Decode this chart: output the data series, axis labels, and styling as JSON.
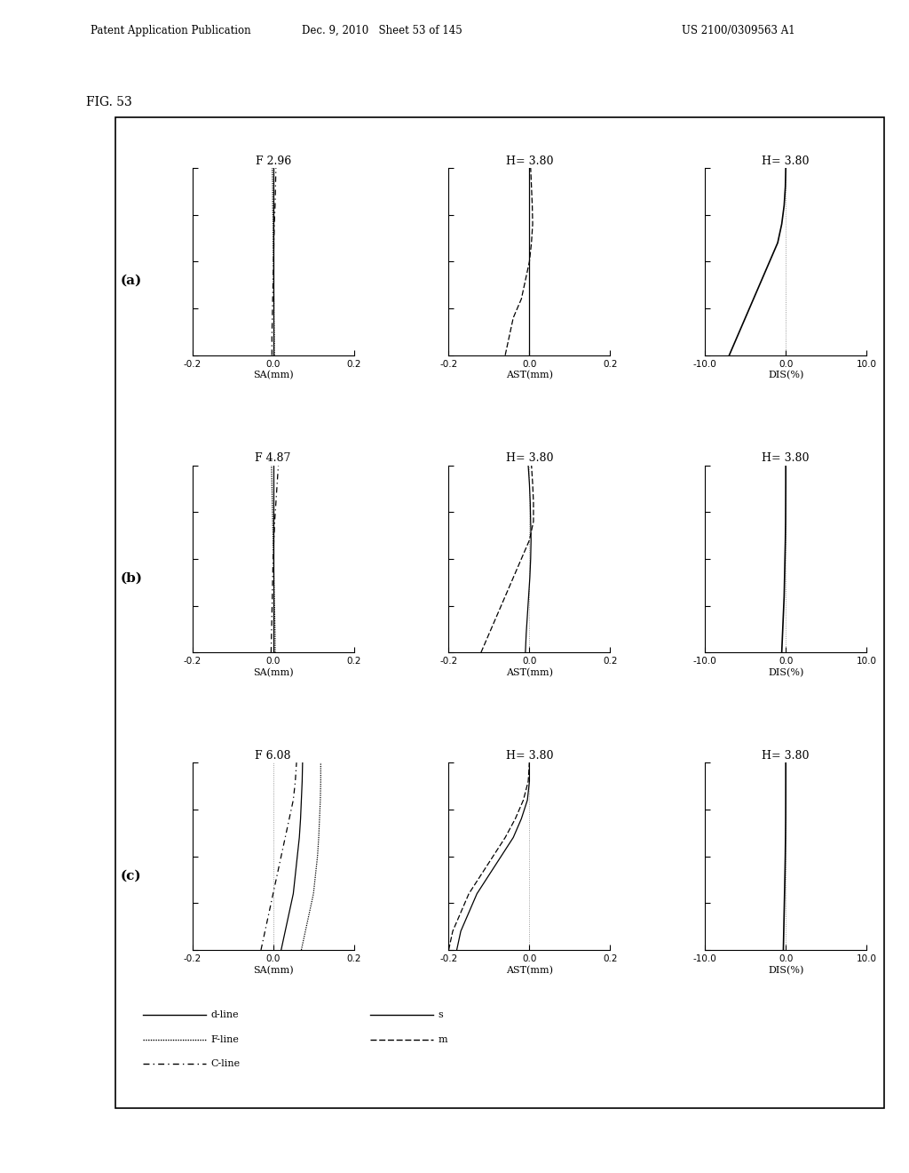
{
  "fig_label": "FIG. 53",
  "header_left": "Patent Application Publication",
  "header_mid": "Dec. 9, 2010   Sheet 53 of 145",
  "header_right": "US 2100/0309563 A1",
  "rows": [
    "(a)",
    "(b)",
    "(c)"
  ],
  "row_titles_sa": [
    "F 2.96",
    "F 4.87",
    "F 6.08"
  ],
  "row_titles_ast": [
    "H= 3.80",
    "H= 3.80",
    "H= 3.80"
  ],
  "row_titles_dis": [
    "H= 3.80",
    "H= 3.80",
    "H= 3.80"
  ],
  "sa_xlim": [
    -0.2,
    0.2
  ],
  "ast_xlim": [
    -0.2,
    0.2
  ],
  "dis_xlim": [
    -10.0,
    10.0
  ],
  "ylim": [
    0.0,
    1.0
  ],
  "sa_xlabel": "SA(mm)",
  "ast_xlabel": "AST(mm)",
  "dis_xlabel": "DIS(%)",
  "sa_xticks": [
    -0.2,
    0.0,
    0.2
  ],
  "ast_xticks": [
    -0.2,
    0.0,
    0.2
  ],
  "dis_xticks": [
    -10.0,
    0.0,
    10.0
  ],
  "ytick_positions": [
    0.0,
    0.25,
    0.5,
    0.75,
    1.0
  ],
  "sa_a_dline_x": [
    0.0,
    0.0,
    0.0,
    0.0,
    0.0,
    0.0,
    0.0,
    0.0,
    0.0,
    0.0,
    0.0
  ],
  "sa_a_dline_y": [
    0.0,
    0.1,
    0.2,
    0.3,
    0.4,
    0.5,
    0.6,
    0.7,
    0.8,
    0.9,
    1.0
  ],
  "sa_a_fline_x": [
    0.003,
    0.003,
    0.002,
    0.002,
    0.001,
    0.001,
    0.0,
    0.0,
    -0.001,
    -0.001,
    -0.002
  ],
  "sa_a_fline_y": [
    0.0,
    0.1,
    0.2,
    0.3,
    0.4,
    0.5,
    0.6,
    0.7,
    0.8,
    0.9,
    1.0
  ],
  "sa_a_cline_x": [
    -0.003,
    -0.003,
    -0.002,
    -0.001,
    0.0,
    0.001,
    0.002,
    0.003,
    0.005,
    0.006,
    0.007
  ],
  "sa_a_cline_y": [
    0.0,
    0.1,
    0.2,
    0.3,
    0.4,
    0.5,
    0.6,
    0.7,
    0.8,
    0.9,
    1.0
  ],
  "ast_a_s_x": [
    0.0,
    0.0,
    0.0,
    0.0,
    0.0,
    0.0,
    0.0,
    0.0,
    0.0,
    0.0,
    0.0
  ],
  "ast_a_s_y": [
    0.0,
    0.1,
    0.2,
    0.3,
    0.4,
    0.5,
    0.6,
    0.7,
    0.8,
    0.9,
    1.0
  ],
  "ast_a_m_x": [
    -0.06,
    -0.05,
    -0.04,
    -0.02,
    -0.01,
    0.0,
    0.005,
    0.008,
    0.007,
    0.005,
    0.003
  ],
  "ast_a_m_y": [
    0.0,
    0.1,
    0.2,
    0.3,
    0.4,
    0.5,
    0.6,
    0.7,
    0.8,
    0.9,
    1.0
  ],
  "dis_a_x": [
    -7.0,
    -6.0,
    -5.0,
    -4.0,
    -3.0,
    -2.0,
    -1.0,
    -0.5,
    -0.2,
    -0.05,
    0.0
  ],
  "dis_a_y": [
    0.0,
    0.1,
    0.2,
    0.3,
    0.4,
    0.5,
    0.6,
    0.7,
    0.8,
    0.9,
    1.0
  ],
  "sa_b_dline_x": [
    0.0,
    0.0,
    0.0,
    0.0,
    0.0,
    0.0,
    0.0,
    0.0,
    0.0,
    0.0,
    0.0
  ],
  "sa_b_dline_y": [
    0.0,
    0.1,
    0.2,
    0.3,
    0.4,
    0.5,
    0.6,
    0.7,
    0.8,
    0.9,
    1.0
  ],
  "sa_b_fline_x": [
    0.005,
    0.005,
    0.004,
    0.003,
    0.002,
    0.001,
    0.0,
    -0.001,
    -0.002,
    -0.003,
    -0.004
  ],
  "sa_b_fline_y": [
    0.0,
    0.1,
    0.2,
    0.3,
    0.4,
    0.5,
    0.6,
    0.7,
    0.8,
    0.9,
    1.0
  ],
  "sa_b_cline_x": [
    -0.005,
    -0.004,
    -0.003,
    -0.002,
    -0.001,
    0.0,
    0.002,
    0.004,
    0.007,
    0.01,
    0.013
  ],
  "sa_b_cline_y": [
    0.0,
    0.1,
    0.2,
    0.3,
    0.4,
    0.5,
    0.6,
    0.7,
    0.8,
    0.9,
    1.0
  ],
  "ast_b_s_x": [
    -0.01,
    -0.008,
    -0.005,
    -0.002,
    0.001,
    0.003,
    0.004,
    0.003,
    0.002,
    0.0,
    -0.003
  ],
  "ast_b_s_y": [
    0.0,
    0.1,
    0.2,
    0.3,
    0.4,
    0.5,
    0.6,
    0.7,
    0.8,
    0.9,
    1.0
  ],
  "ast_b_m_x": [
    -0.12,
    -0.1,
    -0.08,
    -0.06,
    -0.04,
    -0.02,
    0.0,
    0.01,
    0.01,
    0.008,
    0.005
  ],
  "ast_b_m_y": [
    0.0,
    0.1,
    0.2,
    0.3,
    0.4,
    0.5,
    0.6,
    0.7,
    0.8,
    0.9,
    1.0
  ],
  "dis_b_x": [
    -0.5,
    -0.4,
    -0.3,
    -0.2,
    -0.15,
    -0.1,
    -0.05,
    -0.02,
    -0.01,
    0.0,
    0.0
  ],
  "dis_b_y": [
    0.0,
    0.1,
    0.2,
    0.3,
    0.4,
    0.5,
    0.6,
    0.7,
    0.8,
    0.9,
    1.0
  ],
  "sa_c_dline_x": [
    0.02,
    0.03,
    0.04,
    0.05,
    0.055,
    0.06,
    0.065,
    0.068,
    0.07,
    0.072,
    0.073
  ],
  "sa_c_dline_y": [
    0.0,
    0.1,
    0.2,
    0.3,
    0.4,
    0.5,
    0.6,
    0.7,
    0.8,
    0.9,
    1.0
  ],
  "sa_c_fline_x": [
    0.07,
    0.08,
    0.09,
    0.1,
    0.105,
    0.11,
    0.113,
    0.115,
    0.117,
    0.118,
    0.118
  ],
  "sa_c_fline_y": [
    0.0,
    0.1,
    0.2,
    0.3,
    0.4,
    0.5,
    0.6,
    0.7,
    0.8,
    0.9,
    1.0
  ],
  "sa_c_cline_x": [
    -0.03,
    -0.02,
    -0.01,
    0.0,
    0.01,
    0.02,
    0.03,
    0.04,
    0.05,
    0.055,
    0.058
  ],
  "sa_c_cline_y": [
    0.0,
    0.1,
    0.2,
    0.3,
    0.4,
    0.5,
    0.6,
    0.7,
    0.8,
    0.9,
    1.0
  ],
  "ast_c_s_x": [
    -0.18,
    -0.17,
    -0.15,
    -0.13,
    -0.1,
    -0.07,
    -0.04,
    -0.02,
    -0.005,
    0.0,
    0.0
  ],
  "ast_c_s_y": [
    0.0,
    0.1,
    0.2,
    0.3,
    0.4,
    0.5,
    0.6,
    0.7,
    0.8,
    0.9,
    1.0
  ],
  "ast_c_m_x": [
    -0.2,
    -0.19,
    -0.17,
    -0.15,
    -0.12,
    -0.09,
    -0.06,
    -0.035,
    -0.015,
    -0.003,
    0.0
  ],
  "ast_c_m_y": [
    0.0,
    0.1,
    0.2,
    0.3,
    0.4,
    0.5,
    0.6,
    0.7,
    0.8,
    0.9,
    1.0
  ],
  "dis_c_x": [
    -0.3,
    -0.25,
    -0.2,
    -0.15,
    -0.1,
    -0.06,
    -0.03,
    -0.01,
    -0.003,
    0.0,
    0.0
  ],
  "dis_c_y": [
    0.0,
    0.1,
    0.2,
    0.3,
    0.4,
    0.5,
    0.6,
    0.7,
    0.8,
    0.9,
    1.0
  ]
}
